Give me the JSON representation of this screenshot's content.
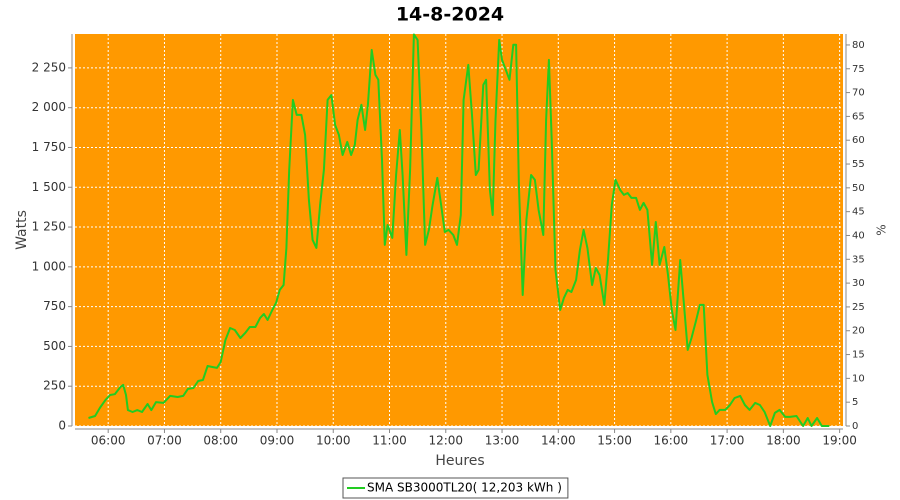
{
  "chart_data": {
    "type": "line",
    "title": "14-8-2024",
    "x_label": "Heures",
    "y_label": "Watts",
    "y2_label": "%",
    "background": "#ff9900",
    "grid": true,
    "legend": "bottom",
    "x": [
      "05:39",
      "05:46",
      "05:51",
      "05:57",
      "06:02",
      "06:07",
      "06:13",
      "06:16",
      "06:19",
      "06:21",
      "06:26",
      "06:31",
      "06:36",
      "06:42",
      "06:46",
      "06:51",
      "06:59",
      "07:06",
      "07:14",
      "07:20",
      "07:25",
      "07:31",
      "07:36",
      "07:41",
      "07:46",
      "07:51",
      "07:56",
      "08:00",
      "08:05",
      "08:10",
      "08:15",
      "08:21",
      "08:26",
      "08:31",
      "08:37",
      "08:42",
      "08:46",
      "08:50",
      "08:55",
      "08:59",
      "09:03",
      "09:07",
      "09:10",
      "09:13",
      "09:17",
      "09:21",
      "09:26",
      "09:30",
      "09:34",
      "09:38",
      "09:42",
      "09:46",
      "09:50",
      "09:54",
      "09:58",
      "10:02",
      "10:06",
      "10:10",
      "10:15",
      "10:19",
      "10:23",
      "10:26",
      "10:30",
      "10:34",
      "10:37",
      "10:41",
      "10:45",
      "10:48",
      "10:52",
      "10:55",
      "10:58",
      "11:03",
      "11:07",
      "11:11",
      "11:14",
      "11:18",
      "11:22",
      "11:26",
      "11:30",
      "11:34",
      "11:38",
      "11:42",
      "11:46",
      "11:51",
      "11:55",
      "11:59",
      "12:03",
      "12:08",
      "12:12",
      "12:16",
      "12:19",
      "12:24",
      "12:28",
      "12:32",
      "12:35",
      "12:40",
      "12:43",
      "12:47",
      "12:50",
      "12:53",
      "12:57",
      "13:00",
      "13:04",
      "13:08",
      "13:12",
      "13:15",
      "13:18",
      "13:22",
      "13:26",
      "13:31",
      "13:35",
      "13:39",
      "13:44",
      "13:47",
      "13:50",
      "13:53",
      "13:57",
      "14:02",
      "14:06",
      "14:10",
      "14:14",
      "14:19",
      "14:23",
      "14:27",
      "14:31",
      "14:36",
      "14:40",
      "14:44",
      "14:49",
      "14:53",
      "14:57",
      "15:01",
      "15:06",
      "15:10",
      "15:14",
      "15:18",
      "15:23",
      "15:27",
      "15:31",
      "15:35",
      "15:40",
      "15:44",
      "15:48",
      "15:53",
      "15:57",
      "16:01",
      "16:05",
      "16:10",
      "16:14",
      "16:18",
      "16:22",
      "16:27",
      "16:31",
      "16:35",
      "16:39",
      "16:44",
      "16:48",
      "16:52",
      "16:58",
      "17:03",
      "17:08",
      "17:14",
      "17:19",
      "17:24",
      "17:30",
      "17:35",
      "17:40",
      "17:46",
      "17:51",
      "17:56",
      "18:02",
      "18:07",
      "18:14",
      "18:21",
      "18:26",
      "18:30",
      "18:36",
      "18:41",
      "18:49"
    ],
    "series": [
      {
        "name": "SMA SB3000TL20( 12,203 kWh )",
        "color": "#22cc22",
        "values": [
          50,
          63,
          113,
          163,
          195,
          200,
          245,
          258,
          195,
          100,
          88,
          100,
          88,
          138,
          100,
          150,
          145,
          189,
          182,
          189,
          233,
          239,
          283,
          289,
          377,
          371,
          365,
          402,
          540,
          616,
          603,
          553,
          584,
          622,
          622,
          679,
          704,
          666,
          729,
          773,
          855,
          886,
          1119,
          1609,
          2049,
          1955,
          1955,
          1829,
          1420,
          1169,
          1119,
          1389,
          1609,
          2049,
          2080,
          1892,
          1829,
          1703,
          1785,
          1703,
          1766,
          1923,
          2018,
          1860,
          2018,
          2363,
          2206,
          2175,
          1672,
          1138,
          1263,
          1182,
          1577,
          1860,
          1577,
          1075,
          1609,
          2460,
          2426,
          1860,
          1138,
          1232,
          1389,
          1559,
          1389,
          1219,
          1232,
          1200,
          1138,
          1326,
          2049,
          2269,
          1955,
          1577,
          1609,
          2143,
          2175,
          1483,
          1326,
          1923,
          2426,
          2300,
          2238,
          2175,
          2395,
          2395,
          1514,
          823,
          1295,
          1577,
          1546,
          1358,
          1200,
          1923,
          2300,
          1798,
          980,
          729,
          805,
          855,
          842,
          918,
          1106,
          1232,
          1119,
          886,
          993,
          949,
          761,
          1043,
          1389,
          1546,
          1483,
          1452,
          1464,
          1433,
          1433,
          1358,
          1402,
          1358,
          1012,
          1282,
          1012,
          1125,
          949,
          729,
          603,
          1043,
          761,
          478,
          553,
          666,
          761,
          761,
          321,
          151,
          75,
          101,
          101,
          132,
          176,
          189,
          132,
          101,
          145,
          132,
          88,
          0,
          82,
          101,
          57,
          57,
          63,
          0,
          50,
          0,
          50,
          0,
          0
        ]
      }
    ],
    "xlim": [
      5.41,
      19.06
    ],
    "xticks": [
      {
        "value": 6,
        "label": "06:00"
      },
      {
        "value": 7,
        "label": "07:00"
      },
      {
        "value": 8,
        "label": "08:00"
      },
      {
        "value": 9,
        "label": "09:00"
      },
      {
        "value": 10,
        "label": "10:00"
      },
      {
        "value": 11,
        "label": "11:00"
      },
      {
        "value": 12,
        "label": "12:00"
      },
      {
        "value": 13,
        "label": "13:00"
      },
      {
        "value": 14,
        "label": "14:00"
      },
      {
        "value": 15,
        "label": "15:00"
      },
      {
        "value": 16,
        "label": "16:00"
      },
      {
        "value": 17,
        "label": "17:00"
      },
      {
        "value": 18,
        "label": "18:00"
      },
      {
        "value": 19,
        "label": "19:00"
      }
    ],
    "ylim": [
      0,
      2463
    ],
    "yticks": [
      0,
      250,
      500,
      750,
      {
        "value": 1000,
        "label": "1 000"
      },
      {
        "value": 1250,
        "label": "1 250"
      },
      {
        "value": 1500,
        "label": "1 500"
      },
      {
        "value": 1750,
        "label": "1 750"
      },
      {
        "value": 2000,
        "label": "2 000"
      },
      {
        "value": 2250,
        "label": "2 250"
      }
    ],
    "y2lim": [
      0,
      82.3
    ],
    "y2ticks": [
      0,
      5,
      10,
      15,
      20,
      25,
      30,
      35,
      40,
      45,
      50,
      55,
      60,
      65,
      70,
      75,
      80
    ]
  }
}
